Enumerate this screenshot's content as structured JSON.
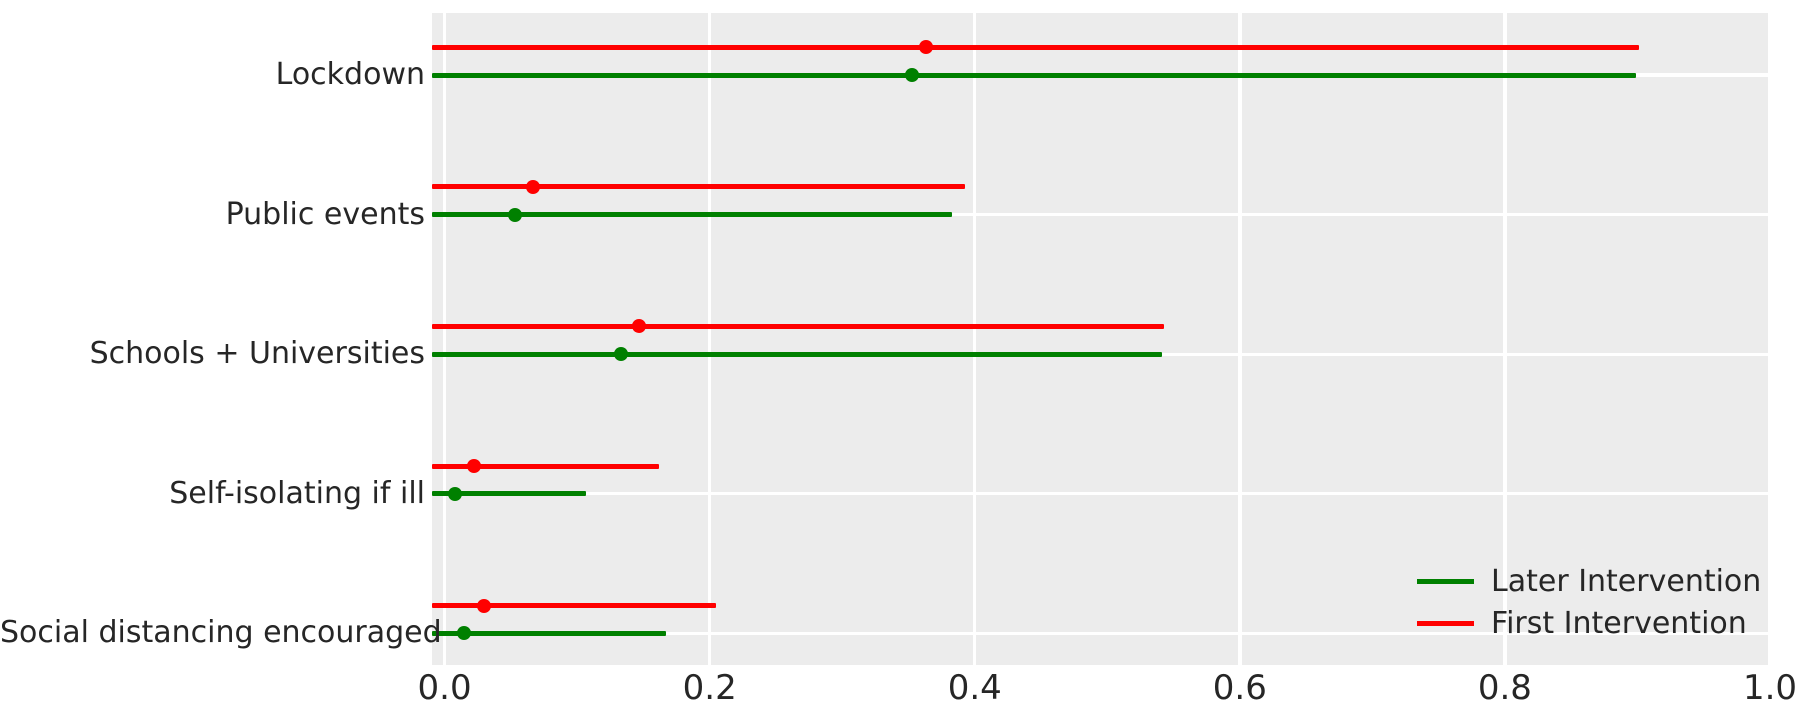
{
  "chart_data": {
    "type": "scatter",
    "subtype": "forest-plot-dot-with-ci",
    "orientation": "horizontal",
    "title": "",
    "xlabel": "",
    "ylabel": "",
    "categories": [
      "Lockdown",
      "Public events",
      "Schools + Universities",
      "Self-isolating if ill",
      "Social distancing encouraged"
    ],
    "series": [
      {
        "name": "First Intervention",
        "color": "#ff0000",
        "points": [
          0.363,
          0.067,
          0.147,
          0.022,
          0.03
        ],
        "ci_low": [
          -0.01,
          -0.01,
          -0.01,
          -0.01,
          -0.01
        ],
        "ci_high": [
          0.901,
          0.393,
          0.543,
          0.162,
          0.205
        ]
      },
      {
        "name": "Later Intervention",
        "color": "#008000",
        "points": [
          0.353,
          0.053,
          0.133,
          0.008,
          0.015
        ],
        "ci_low": [
          -0.01,
          -0.01,
          -0.01,
          -0.01,
          -0.01
        ],
        "ci_high": [
          0.899,
          0.383,
          0.541,
          0.107,
          0.167
        ]
      }
    ],
    "x_ticks": [
      "0.0",
      "0.2",
      "0.4",
      "0.6",
      "0.8",
      "1.0"
    ],
    "x_tick_values": [
      0.0,
      0.2,
      0.4,
      0.6,
      0.8,
      1.0
    ],
    "xlim": [
      -0.0095,
      1.0
    ],
    "grid": "white gridlines on light gray panel; vertical at each x tick, horizontal at each category",
    "legend_position": "lower right"
  },
  "legend": {
    "items": [
      {
        "label": "Later Intervention",
        "color": "#008000"
      },
      {
        "label": "First Intervention",
        "color": "#ff0000"
      }
    ]
  },
  "colors": {
    "panel_background": "#ececec",
    "gridline": "#ffffff",
    "text": "#262626",
    "figure_background": "#ffffff"
  }
}
